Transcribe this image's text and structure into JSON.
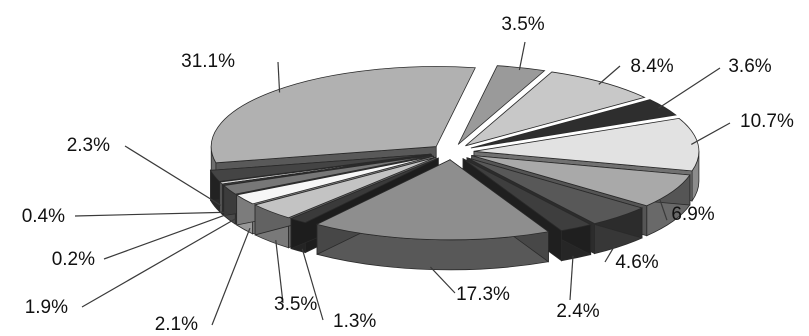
{
  "chart_data": {
    "type": "pie",
    "style": "3d-exploded",
    "labels": [
      "3.5%",
      "8.4%",
      "3.6%",
      "10.7%",
      "6.9%",
      "4.6%",
      "2.4%",
      "17.3%",
      "1.3%",
      "3.5%",
      "2.1%",
      "1.9%",
      "0.2%",
      "0.4%",
      "2.3%",
      "31.1%"
    ],
    "values": [
      3.5,
      8.4,
      3.6,
      10.7,
      6.9,
      4.6,
      2.4,
      17.3,
      1.3,
      3.5,
      2.1,
      1.9,
      0.2,
      0.4,
      2.3,
      31.1
    ],
    "colors": [
      "#9a9a9a",
      "#c8c8c8",
      "#2e2e2e",
      "#e2e2e2",
      "#a9a9a9",
      "#585858",
      "#3e3e3e",
      "#8e8e8e",
      "#3a3a3a",
      "#c3c3c3",
      "#f7f7f7",
      "#777777",
      "#5c5c5c",
      "#d7d7d7",
      "#444444",
      "#b1b1b1"
    ],
    "start_angle_deg": -80,
    "legend": "none",
    "title": ""
  }
}
